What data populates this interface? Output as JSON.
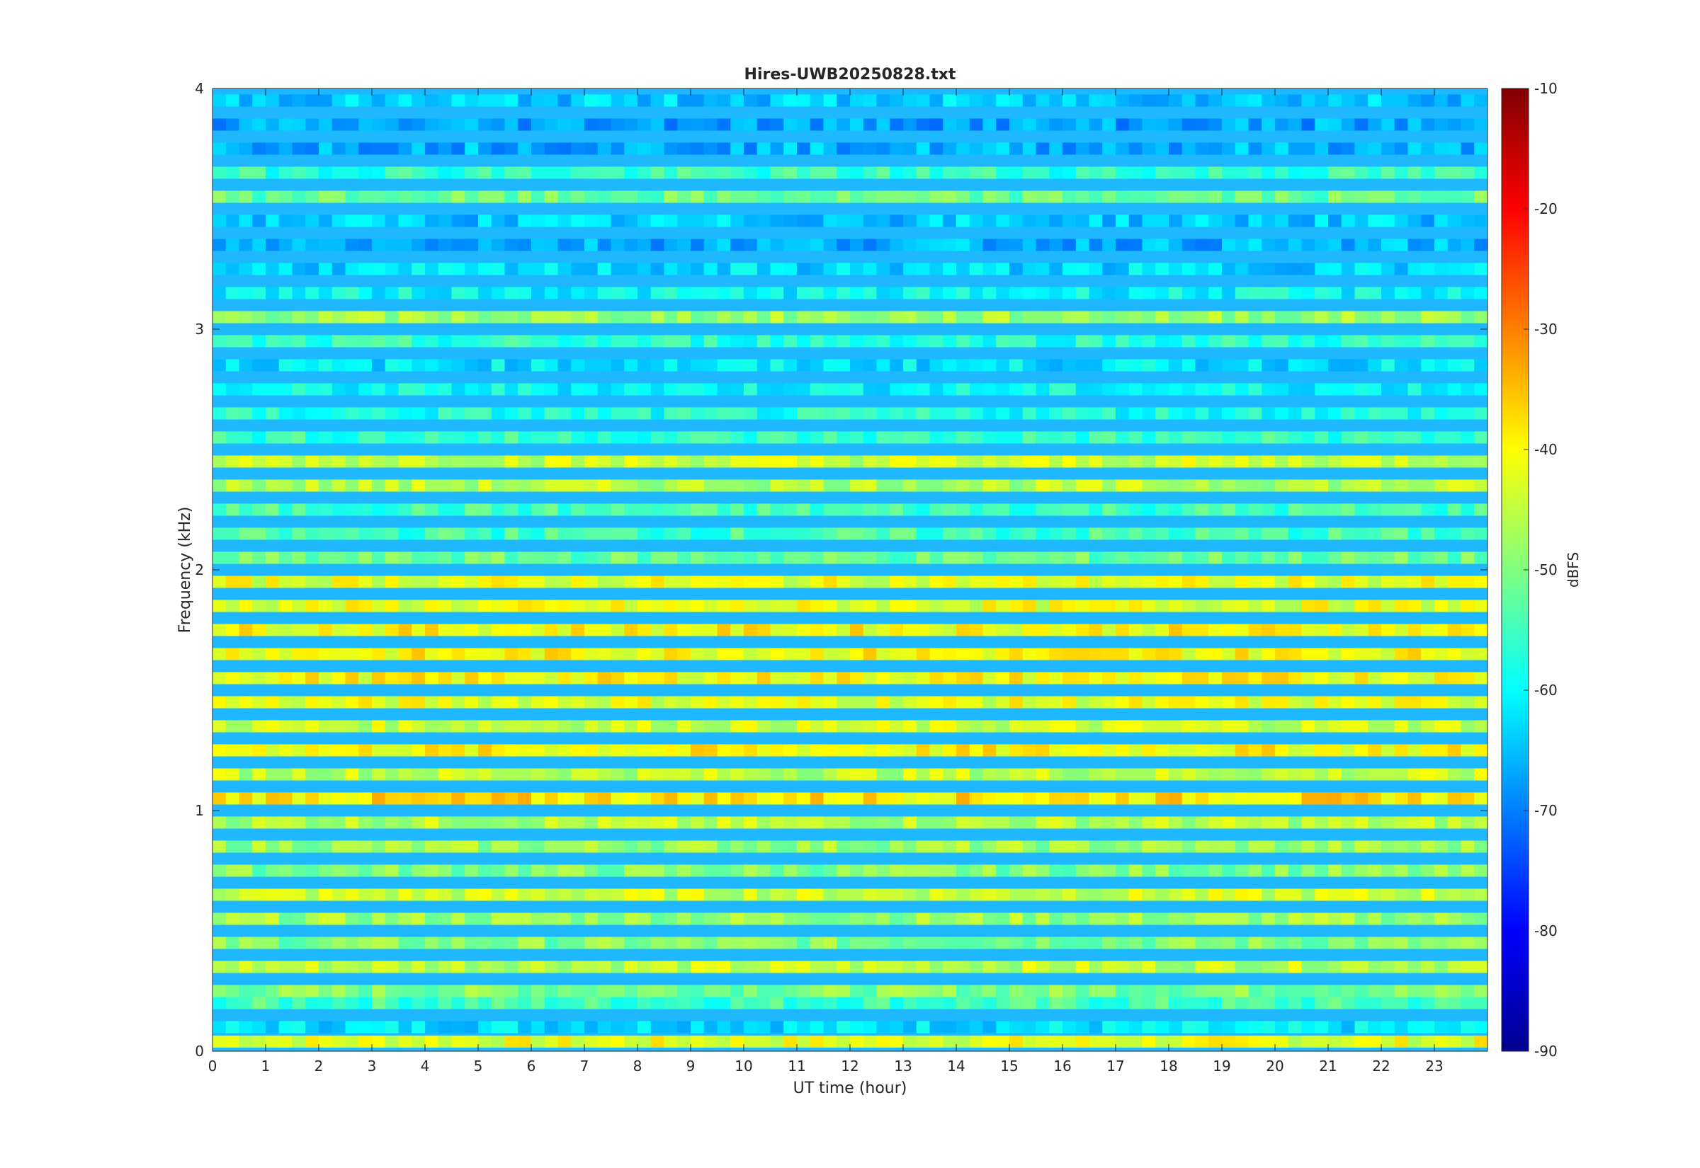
{
  "chart_data": {
    "type": "heatmap",
    "title": "Hires-UWB20250828.txt",
    "xlabel": "UT time (hour)",
    "ylabel": "Frequency (kHz)",
    "colorbar_label": "dBFS",
    "xlim": [
      0,
      24
    ],
    "ylim": [
      0,
      4
    ],
    "clim": [
      -90,
      -10
    ],
    "x_ticks": [
      "0",
      "1",
      "2",
      "3",
      "4",
      "5",
      "6",
      "7",
      "8",
      "9",
      "10",
      "11",
      "12",
      "13",
      "14",
      "15",
      "16",
      "17",
      "18",
      "19",
      "20",
      "21",
      "22",
      "23"
    ],
    "y_ticks": [
      "0",
      "1",
      "2",
      "3",
      "4"
    ],
    "colorbar_ticks": [
      "-90",
      "-80",
      "-70",
      "-60",
      "-50",
      "-40",
      "-30",
      "-20",
      "-10"
    ],
    "colormap": "jet",
    "grid": false,
    "bands_note_values": {
      "frequency_khz": [
        0.04,
        0.1,
        0.2,
        0.25,
        0.35,
        0.45,
        0.55,
        0.65,
        0.75,
        0.85,
        0.95,
        1.05,
        1.15,
        1.25,
        1.35,
        1.45,
        1.55,
        1.65,
        1.75,
        1.85,
        1.95,
        2.05,
        2.15,
        2.25,
        2.35,
        2.45,
        2.55,
        2.65,
        2.75,
        2.85,
        2.95,
        3.05,
        3.15,
        3.25,
        3.35,
        3.45,
        3.55,
        3.65,
        3.75,
        3.85,
        3.95
      ],
      "typical_level_dbfs": [
        -42,
        -62,
        -55,
        -50,
        -45,
        -50,
        -48,
        -44,
        -50,
        -48,
        -46,
        -38,
        -45,
        -40,
        -44,
        -42,
        -40,
        -40,
        -40,
        -42,
        -42,
        -52,
        -55,
        -55,
        -46,
        -44,
        -56,
        -58,
        -60,
        -62,
        -57,
        -48,
        -60,
        -63,
        -66,
        -64,
        -52,
        -56,
        -66,
        -67,
        -64
      ]
    }
  }
}
